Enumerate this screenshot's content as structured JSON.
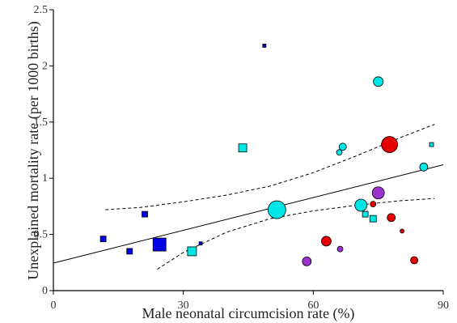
{
  "chart_data": {
    "type": "scatter",
    "title": "",
    "xlabel": "Male neonatal circumcision rate (%)",
    "ylabel": "Unexplained mortality rate (per 1000 births)",
    "xlim": [
      0,
      90
    ],
    "ylim": [
      0,
      2.5
    ],
    "x_ticks": [
      0,
      30,
      60,
      90
    ],
    "x_tick_labels": [
      "0",
      "30",
      "60",
      "90"
    ],
    "y_ticks": [
      0,
      0.5,
      1,
      1.5,
      2,
      2.5
    ],
    "y_tick_labels": [
      "0",
      "0.5",
      "1",
      "1.5",
      "2",
      "2.5"
    ],
    "grid": false,
    "legend": "none",
    "colors": {
      "blue": "#0000e6",
      "cyan": "#00e6e6",
      "red": "#e60000",
      "purple": "#9933cc",
      "line": "#000000"
    },
    "points": [
      {
        "x": 48.7,
        "y": 2.18,
        "shape": "square",
        "color": "blue",
        "size": 4
      },
      {
        "x": 11.5,
        "y": 0.46,
        "shape": "square",
        "color": "blue",
        "size": 7
      },
      {
        "x": 17.6,
        "y": 0.35,
        "shape": "square",
        "color": "blue",
        "size": 7
      },
      {
        "x": 21.1,
        "y": 0.68,
        "shape": "square",
        "color": "blue",
        "size": 7
      },
      {
        "x": 24.5,
        "y": 0.41,
        "shape": "square",
        "color": "blue",
        "size": 16
      },
      {
        "x": 34.0,
        "y": 0.42,
        "shape": "square",
        "color": "blue",
        "size": 4
      },
      {
        "x": 43.7,
        "y": 1.27,
        "shape": "square",
        "color": "cyan",
        "size": 10
      },
      {
        "x": 32.0,
        "y": 0.35,
        "shape": "square",
        "color": "cyan",
        "size": 11
      },
      {
        "x": 51.0,
        "y": 0.7,
        "shape": "square",
        "color": "cyan",
        "size": 8
      },
      {
        "x": 72.0,
        "y": 0.68,
        "shape": "square",
        "color": "cyan",
        "size": 7
      },
      {
        "x": 73.8,
        "y": 0.64,
        "shape": "square",
        "color": "cyan",
        "size": 8
      },
      {
        "x": 87.3,
        "y": 1.3,
        "shape": "square",
        "color": "cyan",
        "size": 5
      },
      {
        "x": 75.0,
        "y": 1.86,
        "shape": "circle",
        "color": "cyan",
        "size": 6
      },
      {
        "x": 66.8,
        "y": 1.28,
        "shape": "circle",
        "color": "cyan",
        "size": 4.5
      },
      {
        "x": 66.0,
        "y": 1.23,
        "shape": "circle",
        "color": "cyan",
        "size": 3.5
      },
      {
        "x": 85.5,
        "y": 1.1,
        "shape": "circle",
        "color": "cyan",
        "size": 5
      },
      {
        "x": 71.0,
        "y": 0.76,
        "shape": "circle",
        "color": "cyan",
        "size": 7.5
      },
      {
        "x": 51.6,
        "y": 0.72,
        "shape": "circle",
        "color": "cyan",
        "size": 11
      },
      {
        "x": 77.6,
        "y": 1.3,
        "shape": "circle",
        "color": "red",
        "size": 10
      },
      {
        "x": 73.8,
        "y": 0.77,
        "shape": "circle",
        "color": "red",
        "size": 3.5
      },
      {
        "x": 78.0,
        "y": 0.65,
        "shape": "circle",
        "color": "red",
        "size": 5
      },
      {
        "x": 80.5,
        "y": 0.53,
        "shape": "circle",
        "color": "red",
        "size": 2.5
      },
      {
        "x": 63.0,
        "y": 0.44,
        "shape": "circle",
        "color": "red",
        "size": 6
      },
      {
        "x": 83.3,
        "y": 0.27,
        "shape": "circle",
        "color": "red",
        "size": 4.5
      },
      {
        "x": 75.0,
        "y": 0.87,
        "shape": "circle",
        "color": "purple",
        "size": 7.5
      },
      {
        "x": 66.2,
        "y": 0.37,
        "shape": "circle",
        "color": "purple",
        "size": 3.5
      },
      {
        "x": 58.5,
        "y": 0.26,
        "shape": "circle",
        "color": "purple",
        "size": 5.5
      }
    ],
    "fit_line": {
      "x": [
        0,
        90
      ],
      "y": [
        0.245,
        1.12
      ],
      "style": "solid"
    },
    "ci_lower": {
      "x": [
        24,
        30,
        40,
        50,
        60,
        70,
        80,
        88
      ],
      "y": [
        0.19,
        0.34,
        0.52,
        0.64,
        0.71,
        0.76,
        0.8,
        0.82
      ],
      "style": "dashed"
    },
    "ci_upper": {
      "x": [
        12,
        20,
        30,
        40,
        50,
        60,
        70,
        80,
        88
      ],
      "y": [
        0.72,
        0.74,
        0.79,
        0.85,
        0.93,
        1.05,
        1.2,
        1.36,
        1.48
      ],
      "style": "dashed"
    }
  }
}
